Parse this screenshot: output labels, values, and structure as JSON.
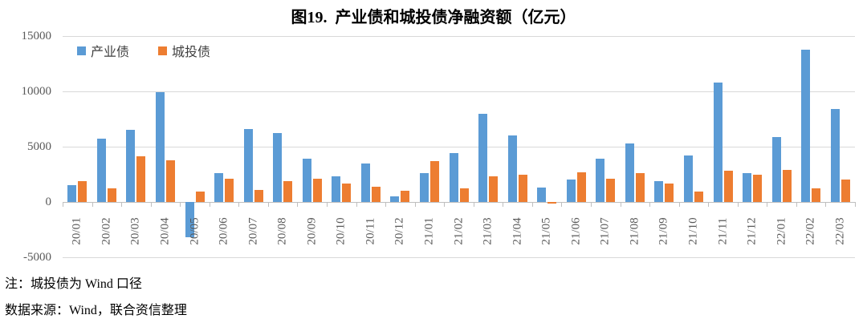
{
  "title": "图19.  产业债和城投债净融资额（亿元）",
  "notes": {
    "line1": "注：城投债为 Wind 口径",
    "line2": "数据来源：Wind，联合资信整理"
  },
  "colors": {
    "industrial_blue": "#5B9BD5",
    "urban_orange": "#ED7D31",
    "gridline": "#D9D9D9",
    "axis_text": "#595959"
  },
  "chart_data": {
    "type": "bar",
    "title": "图19.  产业债和城投债净融资额（亿元）",
    "xlabel": "",
    "ylabel": "",
    "ylim": [
      -5000,
      15000
    ],
    "yticks": [
      -5000,
      0,
      5000,
      10000,
      15000
    ],
    "grid": true,
    "legend_position": "top-left",
    "categories": [
      "20/01",
      "20/02",
      "20/03",
      "20/04",
      "20/05",
      "20/06",
      "20/07",
      "20/08",
      "20/09",
      "20/10",
      "20/11",
      "20/12",
      "21/01",
      "21/02",
      "21/03",
      "21/04",
      "21/05",
      "21/06",
      "21/07",
      "21/08",
      "21/09",
      "21/10",
      "21/11",
      "21/12",
      "22/01",
      "22/02",
      "22/03"
    ],
    "series": [
      {
        "name": "产业债",
        "key": "industrial",
        "color": "#5B9BD5",
        "values": [
          1500,
          5700,
          6500,
          9900,
          -3200,
          2600,
          6600,
          6200,
          3900,
          2300,
          3500,
          500,
          2600,
          4400,
          8000,
          6000,
          1300,
          2000,
          3900,
          5300,
          1900,
          4200,
          10800,
          2600,
          5900,
          13800,
          8400
        ]
      },
      {
        "name": "城投债",
        "key": "urban",
        "color": "#ED7D31",
        "values": [
          1900,
          1200,
          4100,
          3800,
          950,
          2100,
          1100,
          1900,
          2100,
          1700,
          1400,
          1050,
          3700,
          1200,
          2300,
          2450,
          -150,
          2700,
          2100,
          2600,
          1650,
          950,
          2850,
          2500,
          2900,
          1250,
          2000
        ]
      }
    ]
  }
}
